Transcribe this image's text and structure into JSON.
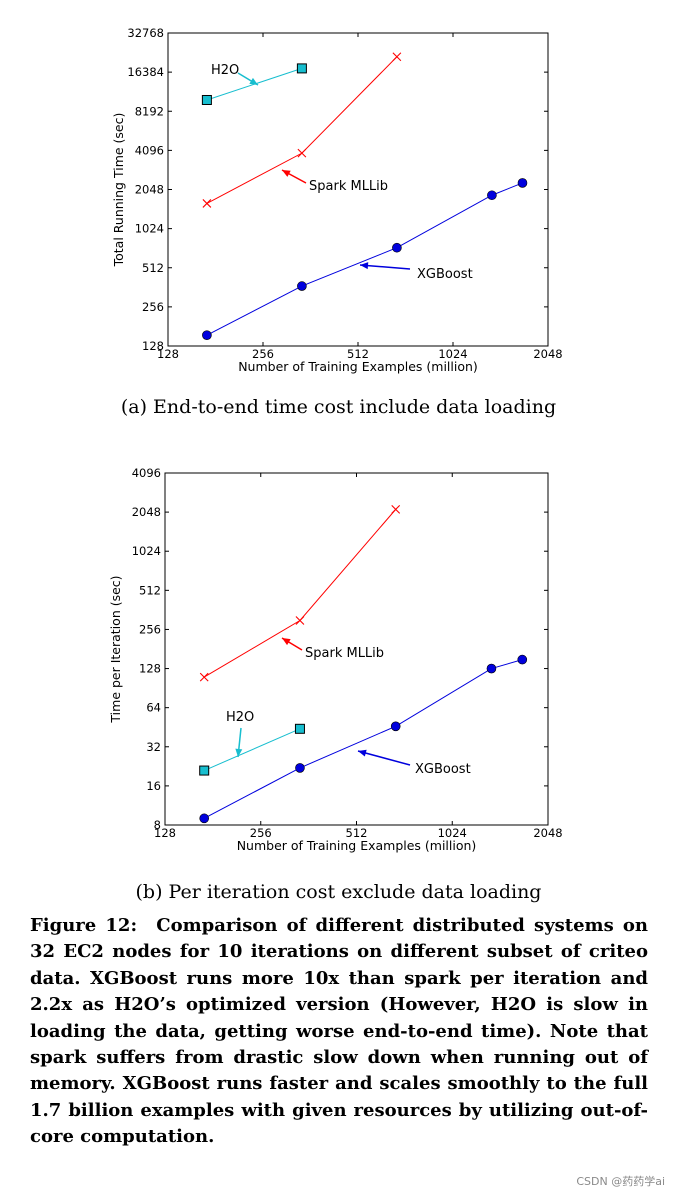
{
  "chart_data": [
    {
      "type": "line",
      "xlabel": "Number of Training Examples (million)",
      "ylabel": "Total Running Time (sec)",
      "xscale": "log2",
      "yscale": "log2",
      "xlim": [
        128,
        2048
      ],
      "ylim": [
        128,
        32768
      ],
      "xticks": [
        128,
        256,
        512,
        1024,
        2048
      ],
      "yticks": [
        128,
        256,
        512,
        1024,
        2048,
        4096,
        8192,
        16384,
        32768
      ],
      "series": [
        {
          "name": "H2O",
          "color": "#17becf",
          "marker": "square",
          "x": [
            170,
            340
          ],
          "y": [
            10000,
            17500
          ]
        },
        {
          "name": "Spark MLLib",
          "color": "#ff0000",
          "marker": "x",
          "x": [
            170,
            340,
            680
          ],
          "y": [
            1600,
            3900,
            21500
          ]
        },
        {
          "name": "XGBoost",
          "color": "#0000dd",
          "marker": "circle",
          "x": [
            170,
            340,
            680,
            1360,
            1700
          ],
          "y": [
            155,
            370,
            730,
            1850,
            2300
          ]
        }
      ],
      "annotations": [
        {
          "label": "H2O",
          "series": 0
        },
        {
          "label": "Spark MLLib",
          "series": 1
        },
        {
          "label": "XGBoost",
          "series": 2
        }
      ]
    },
    {
      "type": "line",
      "xlabel": "Number of Training Examples (million)",
      "ylabel": "Time per Iteration (sec)",
      "xscale": "log2",
      "yscale": "log2",
      "xlim": [
        128,
        2048
      ],
      "ylim": [
        8,
        4096
      ],
      "xticks": [
        128,
        256,
        512,
        1024,
        2048
      ],
      "yticks": [
        8,
        16,
        32,
        64,
        128,
        256,
        512,
        1024,
        2048,
        4096
      ],
      "series": [
        {
          "name": "H2O",
          "color": "#17becf",
          "marker": "square",
          "x": [
            170,
            340
          ],
          "y": [
            21,
            44
          ]
        },
        {
          "name": "Spark MLLib",
          "color": "#ff0000",
          "marker": "x",
          "x": [
            170,
            340,
            680
          ],
          "y": [
            110,
            300,
            2150
          ]
        },
        {
          "name": "XGBoost",
          "color": "#0000dd",
          "marker": "circle",
          "x": [
            170,
            340,
            680,
            1360,
            1700
          ],
          "y": [
            9,
            22,
            46,
            128,
            150
          ]
        }
      ],
      "annotations": [
        {
          "label": "H2O",
          "series": 0
        },
        {
          "label": "Spark MLLib",
          "series": 1
        },
        {
          "label": "XGBoost",
          "series": 2
        }
      ]
    }
  ],
  "captions": {
    "a": "(a) End-to-end time cost include data loading",
    "b": "(b) Per iteration cost exclude data loading"
  },
  "figure_caption": {
    "label": "Figure 12:",
    "text": "Comparison of different distributed systems on 32 EC2 nodes for 10 iterations on different subset of criteo data. XGBoost runs more 10x than spark per iteration and 2.2x as H2O’s optimized version (However, H2O is slow in loading the data, getting worse end-to-end time). Note that spark suffers from drastic slow down when running out of memory. XGBoost runs faster and scales smoothly to the full 1.7 billion examples with given resources by utilizing out-of-core computation."
  },
  "watermark": "CSDN @药药学ai"
}
